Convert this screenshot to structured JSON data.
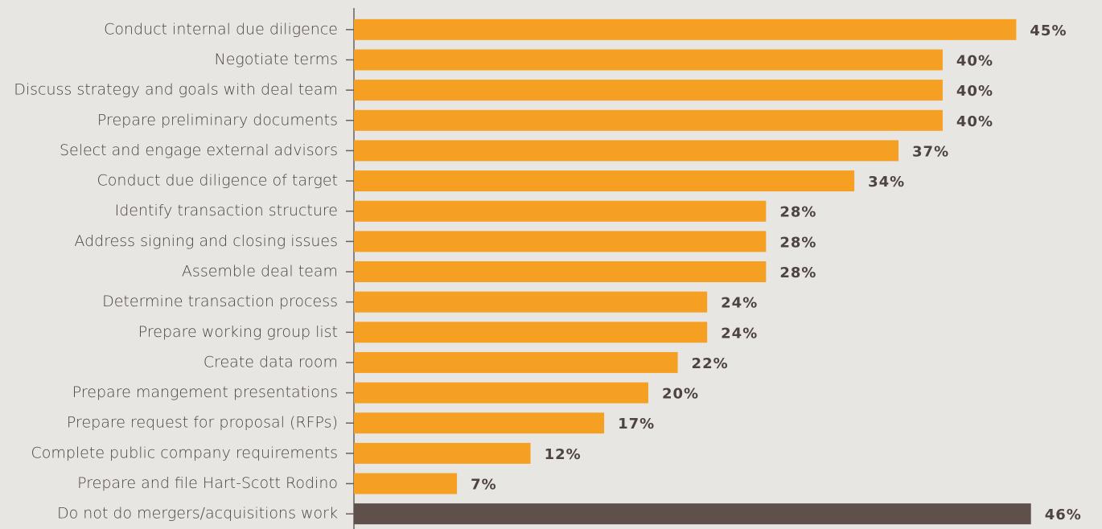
{
  "chart_data": {
    "type": "bar",
    "orientation": "horizontal",
    "categories": [
      "Conduct internal due diligence",
      "Negotiate terms",
      "Discuss strategy and goals with deal team",
      "Prepare preliminary documents",
      "Select and engage external advisors",
      "Conduct due diligence of target",
      "Identify transaction structure",
      "Address signing and closing issues",
      "Assemble deal team",
      "Determine transaction process",
      "Prepare working group list",
      "Create data room",
      "Prepare mangement presentations",
      "Prepare request for proposal (RFPs)",
      "Complete public company requirements",
      "Prepare and file Hart-Scott Rodino",
      "Do not do mergers/acquisitions work"
    ],
    "values": [
      45,
      40,
      40,
      40,
      37,
      34,
      28,
      28,
      28,
      24,
      24,
      22,
      20,
      17,
      12,
      7,
      46
    ],
    "value_labels": [
      "45%",
      "40%",
      "40%",
      "40%",
      "37%",
      "34%",
      "28%",
      "28%",
      "28%",
      "24%",
      "24%",
      "22%",
      "20%",
      "17%",
      "12%",
      "7%",
      "46%"
    ],
    "colors": [
      "#f5a022",
      "#f5a022",
      "#f5a022",
      "#f5a022",
      "#f5a022",
      "#f5a022",
      "#f5a022",
      "#f5a022",
      "#f5a022",
      "#f5a022",
      "#f5a022",
      "#f5a022",
      "#f5a022",
      "#f5a022",
      "#f5a022",
      "#f5a022",
      "#5f504c"
    ],
    "xlim": [
      0,
      47
    ]
  }
}
